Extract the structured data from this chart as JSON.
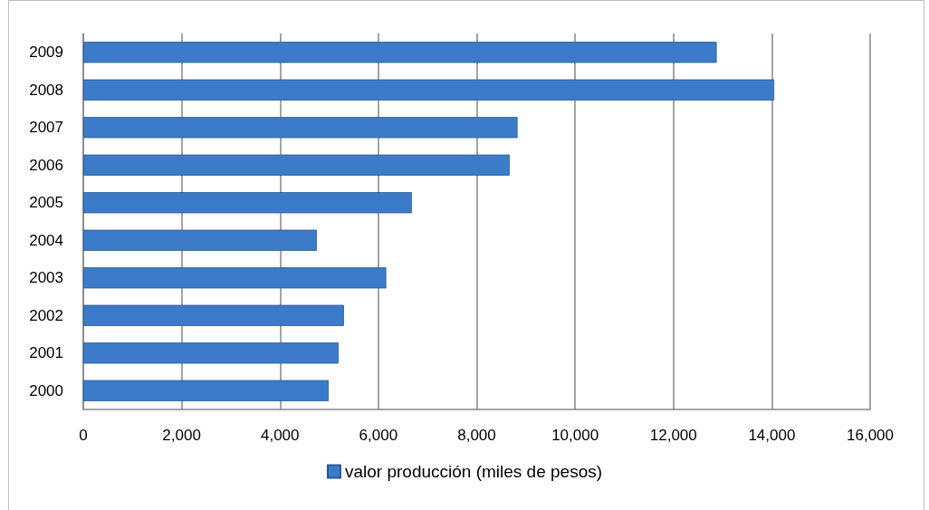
{
  "chart_data": {
    "type": "bar",
    "orientation": "horizontal",
    "categories": [
      "2009",
      "2008",
      "2007",
      "2006",
      "2005",
      "2004",
      "2003",
      "2002",
      "2001",
      "2000"
    ],
    "series": [
      {
        "name": "valor producción (miles de pesos)",
        "color": "#3c7bc9",
        "values": [
          12880,
          14050,
          8830,
          8670,
          6680,
          4750,
          6160,
          5300,
          5190,
          4990
        ]
      }
    ],
    "xlim": [
      0,
      16000
    ],
    "xticks": [
      0,
      {
        "value": 2000,
        "label": "2,000"
      },
      {
        "value": 4000,
        "label": "4,000"
      },
      {
        "value": 6000,
        "label": "6,000"
      },
      {
        "value": 8000,
        "label": "8,000"
      },
      {
        "value": 10000,
        "label": "10,000"
      },
      {
        "value": 12000,
        "label": "12,000"
      },
      {
        "value": 14000,
        "label": "14,000"
      },
      {
        "value": 16000,
        "label": "16,000"
      }
    ],
    "grid": "x",
    "legend": "bottom"
  }
}
